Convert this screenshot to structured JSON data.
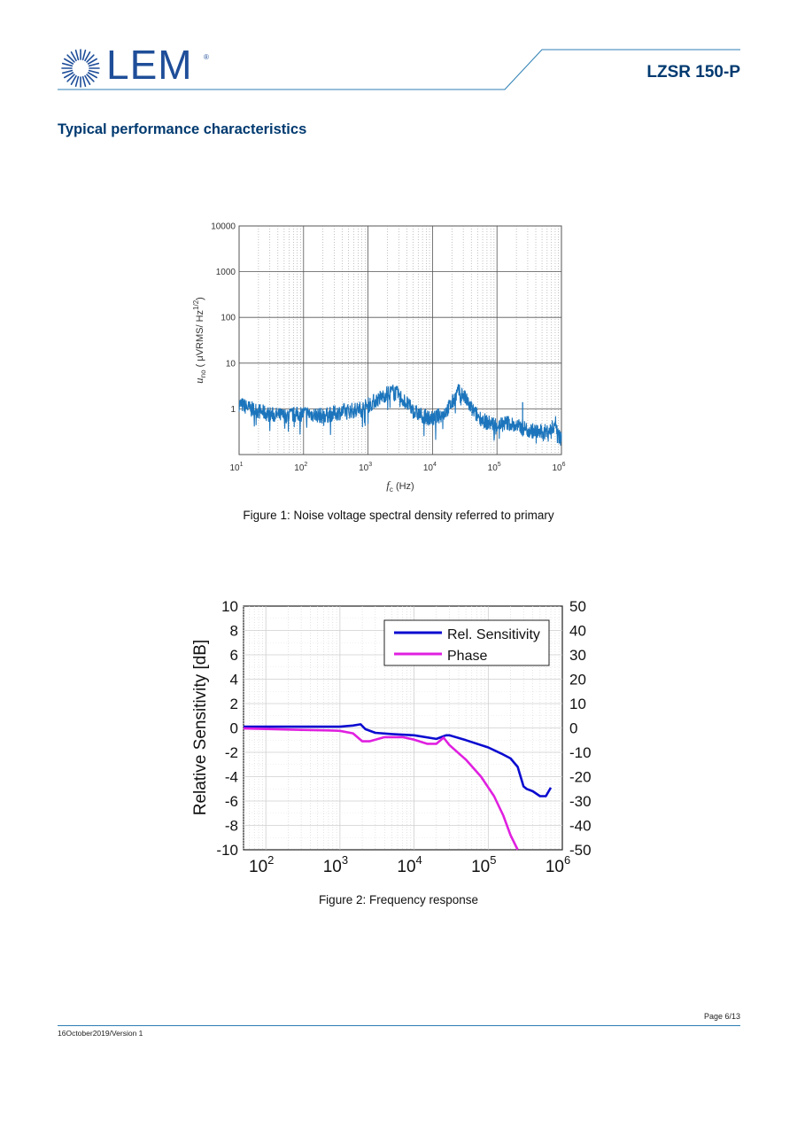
{
  "header": {
    "logo_text": "LEM",
    "logo_registered": "®",
    "product": "LZSR 150-P"
  },
  "section_title": "Typical performance characteristics",
  "colors": {
    "brand_blue": "#1f4e99",
    "title_blue": "#003a70",
    "rule_blue": "#2b7fb3",
    "noise_line": "#1c75bc",
    "sensitivity_line": "#0b0bd0",
    "phase_line": "#e020e0"
  },
  "chart_data": [
    {
      "type": "line",
      "x_scale": "log",
      "y_scale": "log",
      "xlim": [
        10,
        1000000
      ],
      "ylim": [
        0.1,
        10000
      ],
      "x_ticks": [
        "10",
        "10",
        "10",
        "10",
        "10",
        "10"
      ],
      "x_tick_exponents": [
        "1",
        "2",
        "3",
        "4",
        "5",
        "6"
      ],
      "y_ticks": [
        "10000",
        "1000",
        "100",
        "10",
        "1"
      ],
      "xlabel_symbol": "f",
      "xlabel_sub": "c",
      "xlabel_unit": " (Hz)",
      "ylabel_symbol": "u",
      "ylabel_sub": "no",
      "ylabel_unit": " ( μVRMS/ Hz",
      "ylabel_exp": "1/2",
      "ylabel_close": ")",
      "grid": true,
      "series": [
        {
          "x": [
            10,
            15,
            20,
            30,
            50,
            80,
            100,
            150,
            200,
            300,
            500,
            800,
            1000,
            1500,
            2000,
            2500,
            3000,
            4000,
            5000,
            7000,
            10000,
            15000,
            20000,
            25000,
            30000,
            40000,
            50000,
            70000,
            100000,
            150000,
            200000,
            250000,
            300000,
            400000,
            500000,
            700000,
            800000,
            900000,
            1000000
          ],
          "y": [
            1.3,
            1.0,
            0.9,
            0.75,
            0.7,
            0.75,
            0.8,
            0.75,
            0.7,
            0.8,
            0.9,
            1.0,
            1.2,
            1.7,
            2.2,
            2.4,
            2.0,
            1.3,
            0.9,
            0.7,
            0.6,
            0.8,
            1.3,
            2.4,
            2.0,
            1.0,
            0.7,
            0.5,
            0.45,
            0.5,
            0.4,
            0.4,
            0.35,
            0.32,
            0.3,
            0.35,
            0.5,
            0.3,
            0.2
          ]
        }
      ]
    },
    {
      "type": "line",
      "x_scale": "log",
      "xlim": [
        50,
        1000000
      ],
      "ylim": [
        -10,
        10
      ],
      "y2lim": [
        -50,
        50
      ],
      "x_ticks": [
        "10",
        "10",
        "10",
        "10",
        "10"
      ],
      "x_tick_exponents": [
        "2",
        "3",
        "4",
        "5",
        "6"
      ],
      "y_ticks": [
        "10",
        "8",
        "6",
        "4",
        "2",
        "0",
        "-2",
        "-4",
        "-6",
        "-8",
        "-10"
      ],
      "y2_ticks": [
        "50",
        "40",
        "30",
        "20",
        "10",
        "0",
        "-10",
        "-20",
        "-30",
        "-40",
        "-50"
      ],
      "ylabel": "Relative Sensitivity [dB]",
      "grid": true,
      "legend_position": "top-right",
      "series": [
        {
          "name": "Rel. Sensitivity",
          "axis": "left",
          "x": [
            50,
            300,
            700,
            1000,
            1500,
            1900,
            2200,
            3000,
            5000,
            10000,
            20000,
            27000,
            30000,
            50000,
            100000,
            150000,
            200000,
            250000,
            300000,
            330000,
            400000,
            500000,
            600000,
            700000
          ],
          "y": [
            0.1,
            0.1,
            0.1,
            0.1,
            0.2,
            0.3,
            -0.1,
            -0.4,
            -0.5,
            -0.6,
            -0.9,
            -0.6,
            -0.6,
            -1.0,
            -1.6,
            -2.1,
            -2.5,
            -3.2,
            -4.8,
            -5.0,
            -5.2,
            -5.6,
            -5.6,
            -4.9
          ]
        },
        {
          "name": "Phase",
          "axis": "right",
          "x": [
            50,
            300,
            700,
            1000,
            1500,
            2000,
            2500,
            4000,
            7000,
            10000,
            15000,
            20000,
            25000,
            30000,
            50000,
            80000,
            120000,
            160000,
            200000,
            250000
          ],
          "y": [
            -0.2,
            -0.8,
            -1.0,
            -1.2,
            -2.2,
            -5.5,
            -5.5,
            -3.8,
            -3.8,
            -4.8,
            -6.5,
            -6.5,
            -4.0,
            -7.0,
            -13,
            -20,
            -28,
            -36,
            -44,
            -50
          ]
        }
      ]
    }
  ],
  "captions": {
    "figure1": "Figure 1: Noise voltage spectral density referred to primary",
    "figure2": "Figure 2: Frequency response"
  },
  "footer": {
    "page": "Page 6/13",
    "version": "16October2019/Version 1"
  }
}
